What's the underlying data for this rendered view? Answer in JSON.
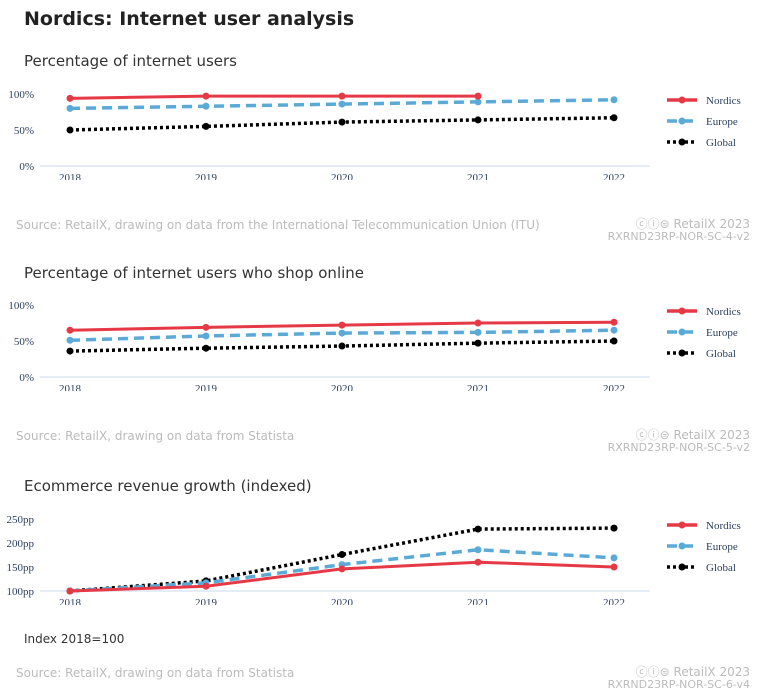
{
  "title": "Nordics: Internet user analysis",
  "colors": {
    "Nordics": "#e63946",
    "Europe": "#5aaad8",
    "Global": "#000000"
  },
  "charts": [
    {
      "title": "Percentage of internet users",
      "source": "Source: RetailX, drawing on data from the International Telecommunication Union (ITU)",
      "brand": "RetailX 2023",
      "id": "RXRND23RP-NOR-SC-4-v2"
    },
    {
      "title": "Percentage of internet users who shop online",
      "source": "Source: RetailX, drawing on data from Statista",
      "brand": "RetailX 2023",
      "id": "RXRND23RP-NOR-SC-5-v2"
    },
    {
      "title": "Ecommerce revenue growth (indexed)",
      "source": "Source: RetailX, drawing on data from Statista",
      "brand": "RetailX 2023",
      "id": "RXRND23RP-NOR-SC-6-v4",
      "note": "Index 2018=100"
    }
  ],
  "chart_data": [
    {
      "type": "line",
      "title": "Percentage of internet users",
      "x": [
        "2018",
        "2019",
        "2020",
        "2021",
        "2022"
      ],
      "ylim": [
        0,
        100
      ],
      "yticks": [
        0,
        50,
        100
      ],
      "ysuffix": "%",
      "legend": "right",
      "series": [
        {
          "name": "Nordics",
          "values": [
            94,
            97,
            97,
            97,
            null
          ]
        },
        {
          "name": "Europe",
          "values": [
            80,
            83,
            86,
            89,
            92
          ]
        },
        {
          "name": "Global",
          "values": [
            50,
            55,
            61,
            64,
            67
          ]
        }
      ]
    },
    {
      "type": "line",
      "title": "Percentage of internet users who shop online",
      "x": [
        "2018",
        "2019",
        "2020",
        "2021",
        "2022"
      ],
      "ylim": [
        0,
        100
      ],
      "yticks": [
        0,
        50,
        100
      ],
      "ysuffix": "%",
      "legend": "right",
      "series": [
        {
          "name": "Nordics",
          "values": [
            65,
            69,
            72,
            75,
            76
          ]
        },
        {
          "name": "Europe",
          "values": [
            51,
            57,
            61,
            62,
            65
          ]
        },
        {
          "name": "Global",
          "values": [
            36,
            40,
            43,
            47,
            50
          ]
        }
      ]
    },
    {
      "type": "line",
      "title": "Ecommerce revenue growth (indexed)",
      "x": [
        "2018",
        "2019",
        "2020",
        "2021",
        "2022"
      ],
      "ylim": [
        100,
        250
      ],
      "yticks": [
        100,
        150,
        200,
        250
      ],
      "ysuffix": "pp",
      "legend": "right",
      "series": [
        {
          "name": "Nordics",
          "values": [
            100,
            110,
            146,
            160,
            150
          ]
        },
        {
          "name": "Europe",
          "values": [
            100,
            117,
            155,
            186,
            169
          ]
        },
        {
          "name": "Global",
          "values": [
            100,
            121,
            176,
            229,
            231
          ]
        }
      ]
    }
  ]
}
